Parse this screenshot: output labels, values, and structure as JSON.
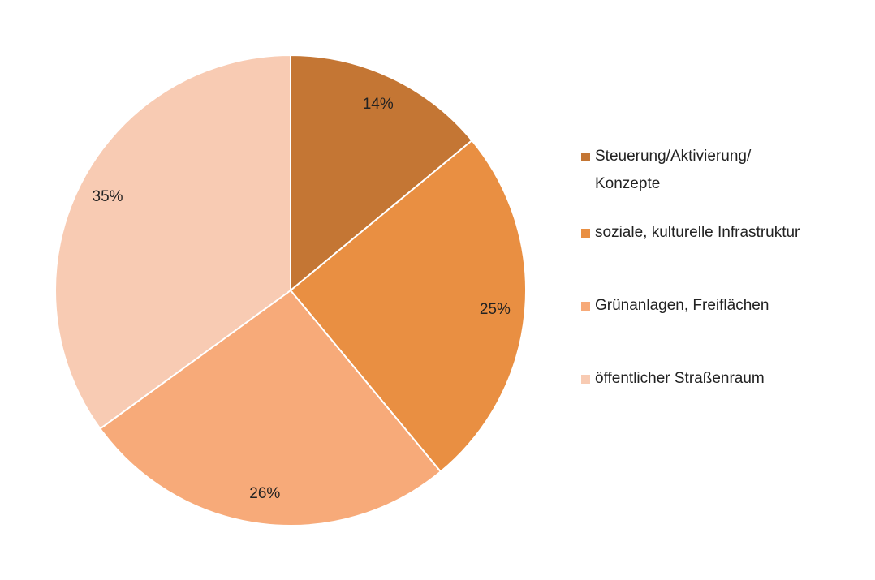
{
  "chart_data": {
    "type": "pie",
    "categories": [
      "Steuerung/Aktivierung/\nKonzepte",
      "soziale, kulturelle Infrastruktur",
      "Grünanlagen, Freiflächen",
      "öffentlicher Straßenraum"
    ],
    "values": [
      14,
      25,
      26,
      35
    ],
    "value_labels": [
      "14%",
      "25%",
      "26%",
      "35%"
    ],
    "colors": [
      "#c47634",
      "#e98f42",
      "#f7aa79",
      "#f8cbb3"
    ],
    "legend": "right"
  }
}
